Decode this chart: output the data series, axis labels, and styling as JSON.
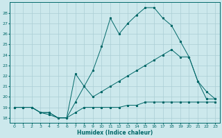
{
  "xlabel": "Humidex (Indice chaleur)",
  "background_color": "#cce8ec",
  "grid_color": "#aacdd4",
  "line_color": "#006868",
  "xlim": [
    -0.5,
    23.5
  ],
  "ylim": [
    17.5,
    29.0
  ],
  "xticks": [
    0,
    1,
    2,
    3,
    4,
    5,
    6,
    7,
    8,
    9,
    10,
    11,
    12,
    13,
    14,
    15,
    16,
    17,
    18,
    19,
    20,
    21,
    22,
    23
  ],
  "yticks": [
    18,
    19,
    20,
    21,
    22,
    23,
    24,
    25,
    26,
    27,
    28
  ],
  "line1_x": [
    0,
    1,
    2,
    3,
    4,
    5,
    6,
    7,
    8,
    9,
    10,
    11,
    12,
    13,
    14,
    15,
    16,
    17,
    18,
    19,
    20,
    21,
    22,
    23
  ],
  "line1_y": [
    19.0,
    19.0,
    19.0,
    18.5,
    18.5,
    18.0,
    18.0,
    18.5,
    19.0,
    19.0,
    19.0,
    19.0,
    19.0,
    19.2,
    19.2,
    19.5,
    19.5,
    19.5,
    19.5,
    19.5,
    19.5,
    19.5,
    19.5,
    19.5
  ],
  "line2_x": [
    0,
    1,
    2,
    3,
    4,
    5,
    6,
    7,
    8,
    9,
    10,
    11,
    12,
    13,
    14,
    15,
    16,
    17,
    18,
    19,
    20,
    21,
    22,
    23
  ],
  "line2_y": [
    19.0,
    19.0,
    19.0,
    18.5,
    18.5,
    18.0,
    18.0,
    19.5,
    21.0,
    22.5,
    24.8,
    27.5,
    26.0,
    27.0,
    27.8,
    28.5,
    28.5,
    27.5,
    26.8,
    25.3,
    23.8,
    21.5,
    19.8,
    19.8
  ],
  "line3_x": [
    0,
    1,
    2,
    3,
    4,
    5,
    6,
    7,
    8,
    9,
    10,
    11,
    12,
    13,
    14,
    15,
    16,
    17,
    18,
    19,
    20,
    21,
    22,
    23
  ],
  "line3_y": [
    19.0,
    19.0,
    19.0,
    18.5,
    18.3,
    18.0,
    18.0,
    22.2,
    21.0,
    20.0,
    20.5,
    21.0,
    21.5,
    22.0,
    22.5,
    23.0,
    23.5,
    24.0,
    24.5,
    23.8,
    23.8,
    21.5,
    20.5,
    19.8
  ]
}
